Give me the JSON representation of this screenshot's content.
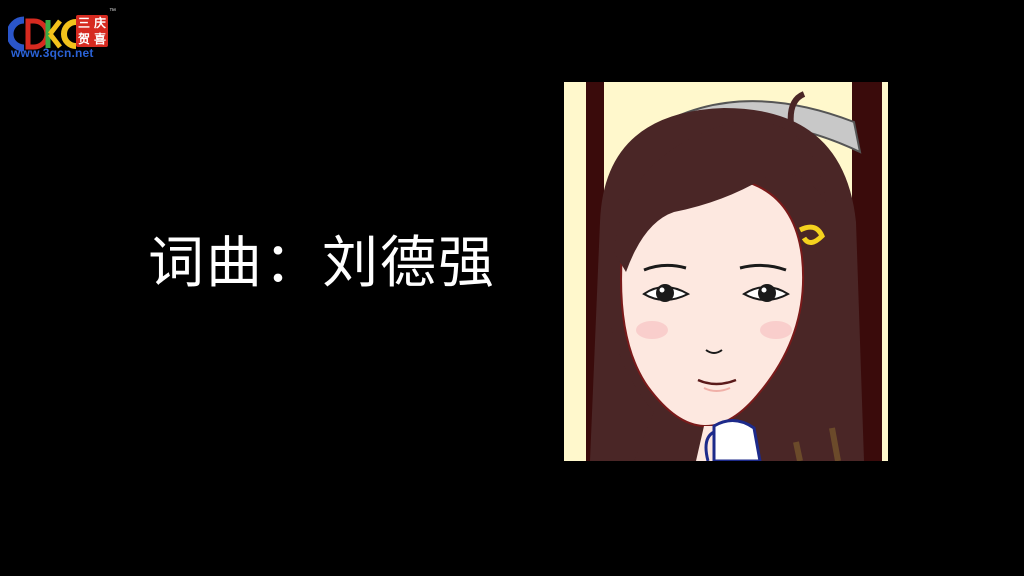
{
  "logo": {
    "letters": "CDKC",
    "badge_chars": [
      "三",
      "庆",
      "贺",
      "喜"
    ],
    "trademark": "™",
    "url": "www.3qcn.net",
    "colors": {
      "blue": "#2a55c9",
      "red": "#d62a20",
      "yellow": "#f2c21b",
      "green": "#3aa845"
    }
  },
  "credit": {
    "text": "词曲：刘德强"
  },
  "illustration": {
    "subject": "cartoon-girl-portrait",
    "colors": {
      "background": "#fff8cc",
      "frame": "#3a0b0b",
      "hair": "#4a2626",
      "skin": "#fde8e0",
      "hairclip": "#f5d21e"
    }
  }
}
